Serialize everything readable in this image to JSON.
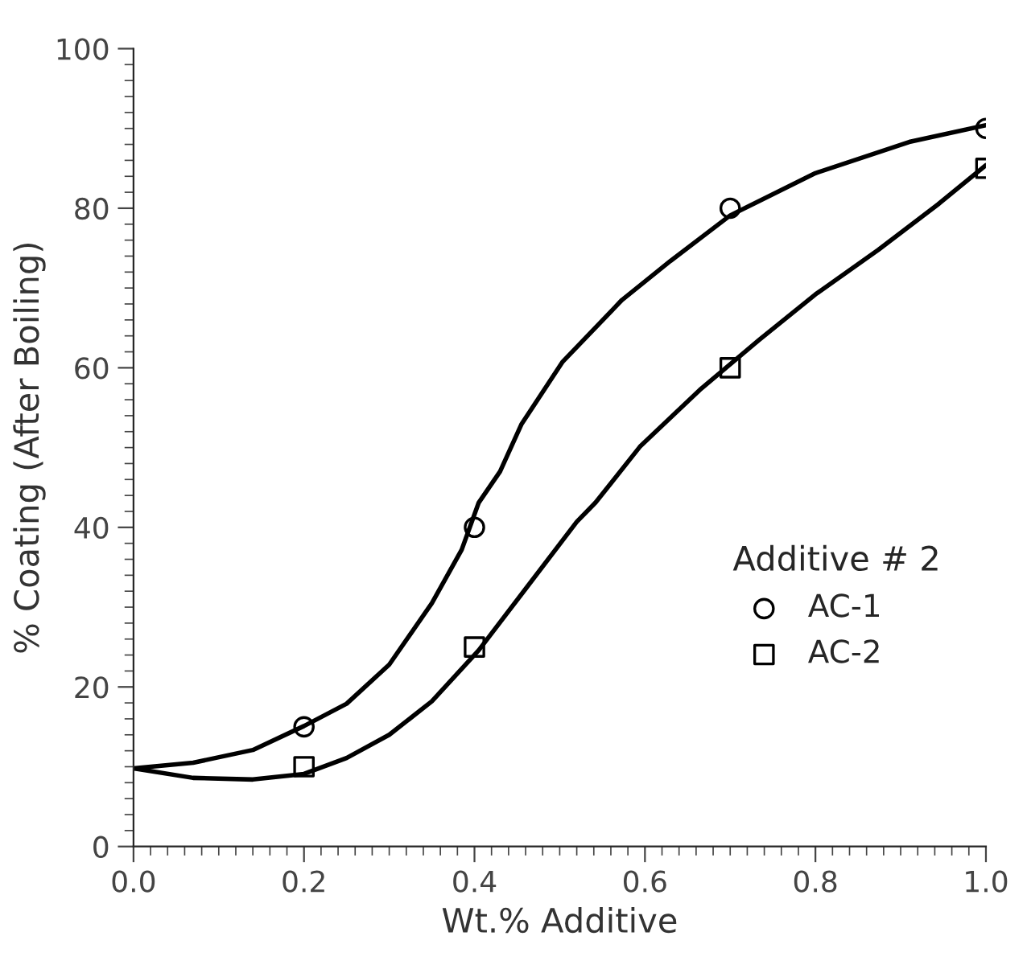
{
  "chart_data": {
    "type": "scatter",
    "xlabel": "Wt.% Additive",
    "ylabel": "% Coating (After Boiling)",
    "legend_title": "Additive # 2",
    "legend": "right",
    "xlim": [
      0,
      1
    ],
    "ylim": [
      0,
      100
    ],
    "xticks": [
      {
        "value": 0,
        "label": "0.0"
      },
      {
        "value": 0.2,
        "label": "0.2"
      },
      {
        "value": 0.4,
        "label": "0.4"
      },
      {
        "value": 0.6,
        "label": "0.6"
      },
      {
        "value": 0.8,
        "label": "0.8"
      },
      {
        "value": 1,
        "label": "1.0"
      }
    ],
    "yticks": [
      0,
      20,
      40,
      60,
      80,
      100
    ],
    "grid": false,
    "series": [
      {
        "name": "AC-1",
        "marker": "circle",
        "color": "#000000",
        "x": [
          0.2,
          0.4,
          0.7,
          1.0
        ],
        "values": [
          15,
          40,
          80,
          90
        ]
      },
      {
        "name": "AC-2",
        "marker": "square",
        "color": "#000000",
        "x": [
          0.2,
          0.4,
          0.7,
          1.0
        ],
        "values": [
          10,
          25,
          60,
          85
        ]
      },
      {
        "type": "line",
        "marker": "none",
        "line_style": "solid",
        "color": "#000000",
        "x": [
          0,
          0.07,
          0.14,
          0.2,
          0.25,
          0.3,
          0.35,
          0.385,
          0.405,
          0.43,
          0.455,
          0.503,
          0.573,
          0.63,
          0.7,
          0.8,
          0.91,
          1.0
        ],
        "values": [
          9.8,
          10.5,
          12.1,
          15.1,
          17.9,
          22.8,
          30.5,
          37.2,
          43.1,
          47,
          52.9,
          60.7,
          68.5,
          73.4,
          79.1,
          84.4,
          88.3,
          90.4
        ]
      },
      {
        "type": "line",
        "marker": "none",
        "line_style": "solid",
        "color": "#000000",
        "x": [
          0,
          0.07,
          0.14,
          0.2,
          0.25,
          0.3,
          0.35,
          0.405,
          0.46,
          0.52,
          0.542,
          0.594,
          0.664,
          0.734,
          0.8,
          0.874,
          0.944,
          1.0
        ],
        "values": [
          9.8,
          8.6,
          8.4,
          9.1,
          11.1,
          14,
          18.2,
          24.6,
          32.3,
          40.7,
          43.1,
          50.1,
          57.2,
          63.5,
          69.2,
          74.8,
          80.5,
          85.4
        ]
      }
    ]
  }
}
